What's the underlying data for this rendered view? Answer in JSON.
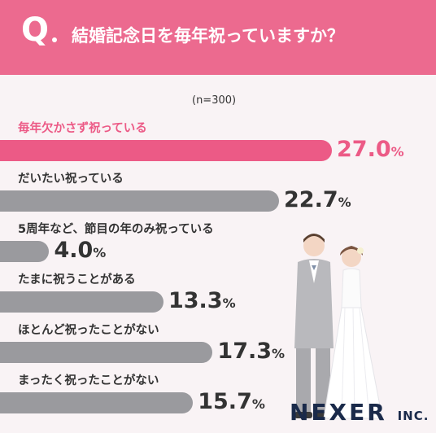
{
  "header": {
    "q_mark": "Q",
    "question": "結婚記念日を毎年祝っていますか？"
  },
  "chart_data": {
    "type": "bar",
    "orientation": "horizontal",
    "sample_note": "(n=300)",
    "unit": "%",
    "categories": [
      "毎年欠かさず祝っている",
      "だいたい祝っている",
      "5周年など、節目の年のみ祝っている",
      "たまに祝うことがある",
      "ほとんど祝ったことがない",
      "まったく祝ったことがない"
    ],
    "values": [
      27.0,
      22.7,
      4.0,
      13.3,
      17.3,
      15.7
    ],
    "value_labels": [
      "27.0",
      "22.7",
      "4.0",
      "13.3",
      "17.3",
      "15.7"
    ],
    "highlight_index": 0,
    "colors": {
      "highlight": "#ec5a86",
      "default": "#9a9a9e",
      "header": "#ec6a8f"
    },
    "xlim": [
      0,
      27.0
    ],
    "grid": false,
    "legend": "none"
  },
  "logo": {
    "name": "NEXER",
    "suffix": "INC."
  }
}
